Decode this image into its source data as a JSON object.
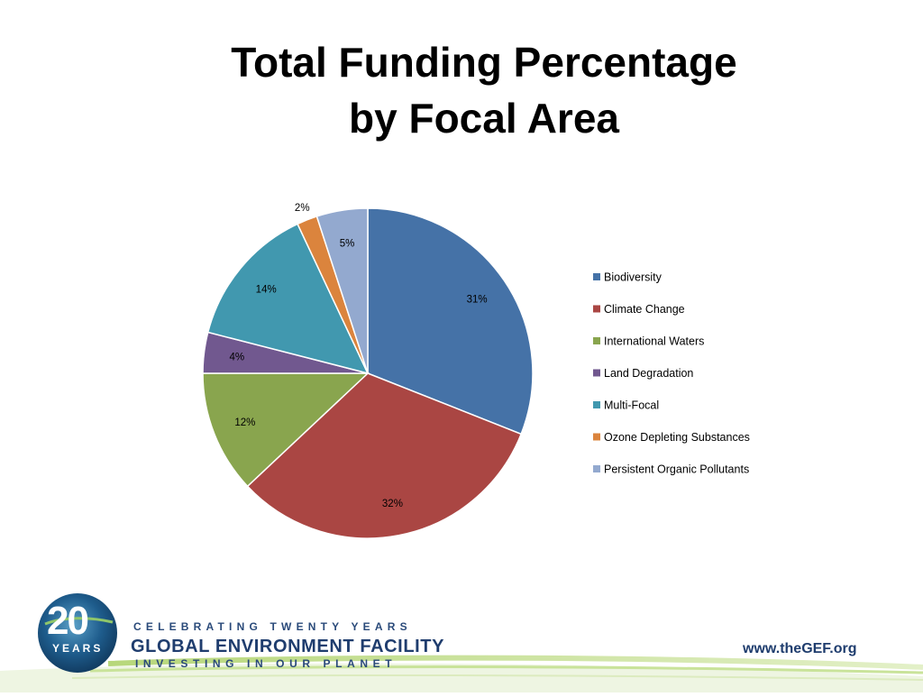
{
  "slide": {
    "title_line1": "Total Funding Percentage",
    "title_line2": "by Focal Area"
  },
  "footer": {
    "logo_number": "20",
    "logo_years": "YEARS",
    "celebrating": "CELEBRATING TWENTY YEARS",
    "organization": "GLOBAL ENVIRONMENT FACILITY",
    "tagline": "INVESTING IN OUR PLANET",
    "website": "www.theGEF.org"
  },
  "chart_data": {
    "type": "pie",
    "title": "Total Funding Percentage by Focal Area",
    "legend_position": "right",
    "start_angle_deg": 0,
    "direction": "clockwise",
    "categories": [
      "Biodiversity",
      "Climate Change",
      "International Waters",
      "Land Degradation",
      "Multi-Focal",
      "Ozone Depleting Substances",
      "Persistent Organic Pollutants"
    ],
    "values": [
      31,
      32,
      12,
      4,
      14,
      2,
      5
    ],
    "labels": [
      "31%",
      "32%",
      "12%",
      "4%",
      "14%",
      "2%",
      "5%"
    ],
    "colors": [
      "#4572a7",
      "#aa4643",
      "#89a54e",
      "#71588f",
      "#4198af",
      "#db843d",
      "#93a9cf"
    ]
  }
}
